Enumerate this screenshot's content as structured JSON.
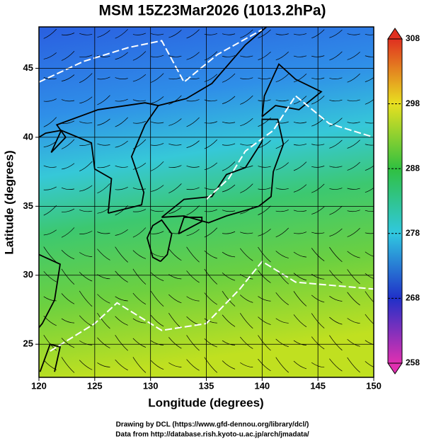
{
  "title": "MSM 15Z23Mar2026 (1013.2hPa)",
  "map": {
    "x_label": "Longitude (degrees)",
    "y_label": "Latitude  (degrees)",
    "xlim": [
      120,
      150
    ],
    "ylim": [
      22.6,
      48
    ],
    "xticks": [
      120,
      125,
      130,
      135,
      140,
      145,
      150
    ],
    "yticks": [
      25,
      30,
      35,
      40,
      45
    ],
    "grid": true
  },
  "colorbar": {
    "range": [
      258,
      308
    ],
    "ticks": [
      258,
      268,
      278,
      288,
      298,
      308
    ]
  },
  "credits": [
    "Drawing by DCL (https://www.gfd-dennou.org/library/dcl/)",
    "Data from http://database.rish.kyoto-u.ac.jp/arch/jmadata/"
  ]
}
